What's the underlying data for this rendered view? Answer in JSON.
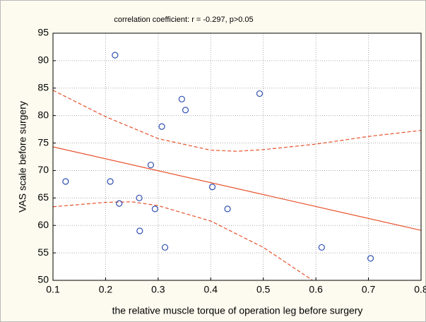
{
  "chart_data": {
    "type": "scatter",
    "title": "correlation coefficient: r = -0.297, p>0.05",
    "x_label": "the relative muscle torque of operation leg before surgery",
    "y_label": "VAS scale before surgery",
    "x": [
      0.124,
      0.218,
      0.209,
      0.226,
      0.286,
      0.264,
      0.294,
      0.265,
      0.313,
      0.307,
      0.345,
      0.352,
      0.403,
      0.432,
      0.493,
      0.611,
      0.704
    ],
    "values": [
      68,
      91,
      68,
      64,
      71,
      65,
      63,
      59,
      56,
      78,
      83,
      81,
      67,
      63,
      84,
      56,
      54
    ],
    "color": "#2f4fb0",
    "fit": {
      "x": [
        0.1,
        0.8
      ],
      "values": [
        74.3,
        59.1
      ],
      "color": "#e8502a"
    },
    "upper_band": {
      "x": [
        0.1,
        0.2,
        0.3,
        0.4,
        0.45,
        0.5,
        0.6,
        0.7,
        0.8
      ],
      "values": [
        84.6,
        79.8,
        75.8,
        73.7,
        73.5,
        73.8,
        74.8,
        76.2,
        77.3
      ],
      "color": "#e8502a"
    },
    "lower_band": {
      "x": [
        0.1,
        0.2,
        0.25,
        0.3,
        0.4,
        0.5,
        0.55,
        0.6
      ],
      "values": [
        63.4,
        64.2,
        64.3,
        63.6,
        60.8,
        56.0,
        52.8,
        49.6
      ],
      "color": "#e8502a"
    },
    "xlim": [
      0.1,
      0.8
    ],
    "xticks": [
      0.1,
      0.2,
      0.3,
      0.4,
      0.5,
      0.6,
      0.7,
      0.8
    ],
    "ylim": [
      50,
      95
    ],
    "yticks": [
      50,
      55,
      60,
      65,
      70,
      75,
      80,
      85,
      90,
      95
    ],
    "grid": true
  }
}
